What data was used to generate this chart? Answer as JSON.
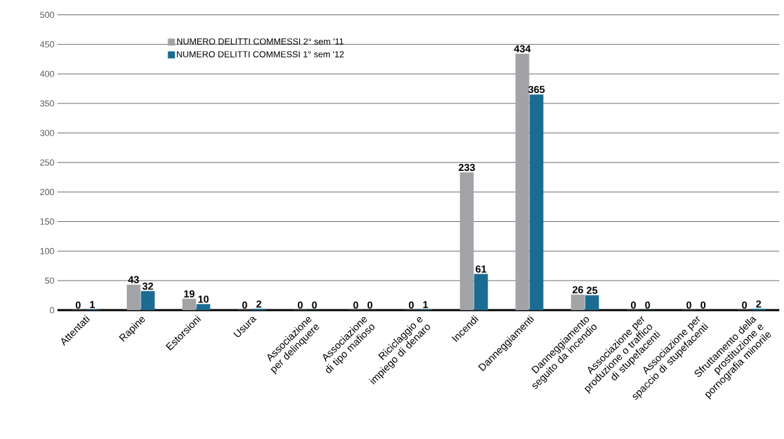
{
  "chart_data": {
    "type": "bar",
    "categories": [
      "Attentati",
      "Rapine",
      "Estorsioni",
      "Usura",
      "Associazione per delinquere",
      "Associazione di tipo mafioso",
      "Riciclaggio e impiego di denaro",
      "Incendi",
      "Danneggiamenti",
      "Danneggiamento seguito da incendio",
      "Associazione per produzione o traffico di stupefacenti",
      "Associazione per spaccio di stupefacenti",
      "Sfruttamento della prostituzione e pornografia minorile"
    ],
    "series": [
      {
        "name": "NUMERO DELITTI COMMESSI 2° sem '11",
        "color": "#a2a3a6",
        "values": [
          0,
          43,
          19,
          0,
          0,
          0,
          0,
          233,
          434,
          26,
          0,
          0,
          0
        ]
      },
      {
        "name": "NUMERO DELITTI COMMESSI 1° sem '12",
        "color": "#1b6b93",
        "values": [
          1,
          32,
          10,
          2,
          0,
          0,
          1,
          61,
          365,
          25,
          0,
          0,
          2
        ]
      }
    ],
    "ylim": [
      0,
      500
    ],
    "yticks": [
      0,
      50,
      100,
      150,
      200,
      250,
      300,
      350,
      400,
      450,
      500
    ],
    "grid": "y",
    "legend": "top left",
    "data_labels": true
  }
}
